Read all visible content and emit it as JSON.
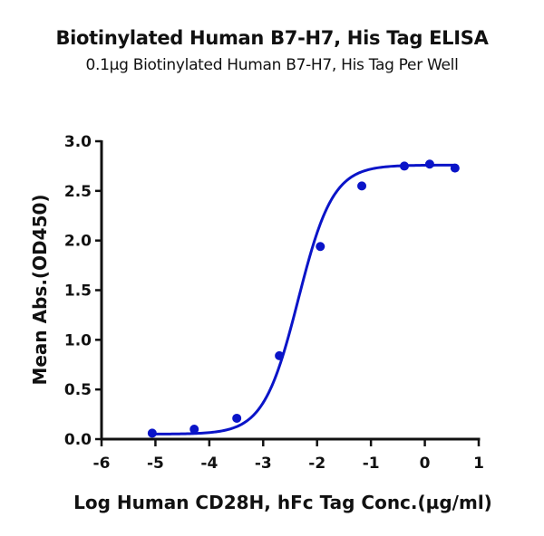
{
  "chart_data": {
    "type": "scatter",
    "title": "Biotinylated Human B7-H7, His Tag ELISA",
    "subtitle": "0.1µg Biotinylated Human B7-H7, His Tag Per Well",
    "xlabel": "Log Human CD28H, hFc Tag Conc.(µg/ml)",
    "ylabel": "Mean Abs.(OD450)",
    "xlim": [
      -6,
      1
    ],
    "ylim": [
      0,
      3.0
    ],
    "xticks": [
      "-6",
      "-5",
      "-4",
      "-3",
      "-2",
      "-1",
      "0",
      "1"
    ],
    "yticks": [
      "0.0",
      "0.5",
      "1.0",
      "1.5",
      "2.0",
      "2.5",
      "3.0"
    ],
    "grid": false,
    "legend": null,
    "fit": "4-parameter logistic curve",
    "series": [
      {
        "name": "Biotinylated Human B7-H7, His Tag",
        "color": "#0a14c8",
        "x": [
          -5.06,
          -4.28,
          -3.49,
          -2.7,
          -1.94,
          -1.17,
          -0.38,
          0.09,
          0.56
        ],
        "y": [
          0.06,
          0.1,
          0.21,
          0.84,
          1.94,
          2.55,
          2.75,
          2.77,
          2.73
        ]
      }
    ]
  }
}
